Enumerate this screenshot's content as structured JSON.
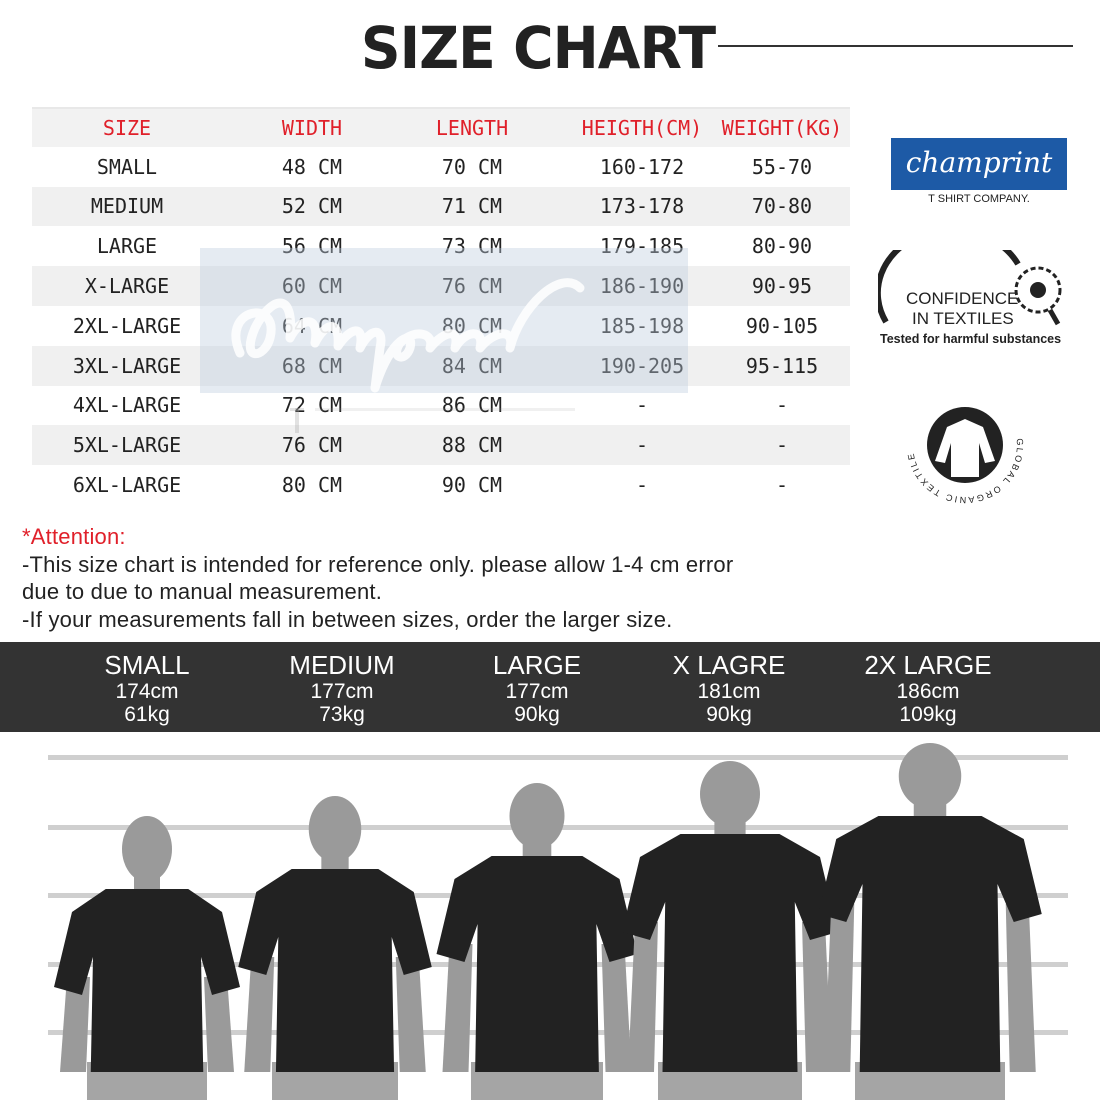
{
  "title": "SIZE CHART",
  "table": {
    "headers": [
      "SIZE",
      "WIDTH",
      "LENGTH",
      "HEIGTH(CM)",
      "WEIGHT(KG)"
    ],
    "rows": [
      [
        "SMALL",
        "48 CM",
        "70 CM",
        "160-172",
        "55-70"
      ],
      [
        "MEDIUM",
        "52 CM",
        "71 CM",
        "173-178",
        "70-80"
      ],
      [
        "LARGE",
        "56 CM",
        "73 CM",
        "179-185",
        "80-90"
      ],
      [
        "X-LARGE",
        "60 CM",
        "76 CM",
        "186-190",
        "90-95"
      ],
      [
        "2XL-LARGE",
        "64 CM",
        "80 CM",
        "185-198",
        "90-105"
      ],
      [
        "3XL-LARGE",
        "68 CM",
        "84 CM",
        "190-205",
        "95-115"
      ],
      [
        "4XL-LARGE",
        "72 CM",
        "86 CM",
        "-",
        "-"
      ],
      [
        "5XL-LARGE",
        "76 CM",
        "88 CM",
        "-",
        "-"
      ],
      [
        "6XL-LARGE",
        "80 CM",
        "90 CM",
        "-",
        "-"
      ]
    ]
  },
  "watermark": {
    "script": "champrint",
    "sub": "T SHIRT COMPANY."
  },
  "logos": {
    "brand": "champrint",
    "brand_sub": "T SHIRT COMPANY.",
    "confidence": [
      "CONFIDENCE",
      "IN TEXTILES",
      "Tested for harmful substances"
    ],
    "gots": "GLOBAL ORGANIC TEXTILE STANDARD · GOTS ·"
  },
  "attention": {
    "heading": "*Attention:",
    "lines": [
      "-This size chart is intended for reference only. please allow 1-4 cm error",
      "due to due to manual measurement.",
      "-If your measurements fall in between sizes, order the larger size."
    ]
  },
  "models": [
    {
      "size": "SMALL",
      "height": "174cm",
      "weight": "61kg"
    },
    {
      "size": "MEDIUM",
      "height": "177cm",
      "weight": "73kg"
    },
    {
      "size": "LARGE",
      "height": "177cm",
      "weight": "90kg"
    },
    {
      "size": "X LAGRE",
      "height": "181cm",
      "weight": "90kg"
    },
    {
      "size": "2X LARGE",
      "height": "186cm",
      "weight": "109kg"
    }
  ],
  "colors": {
    "accent_red": "#e0202a",
    "brand_blue": "#1d5aa6",
    "band": "#333333"
  }
}
